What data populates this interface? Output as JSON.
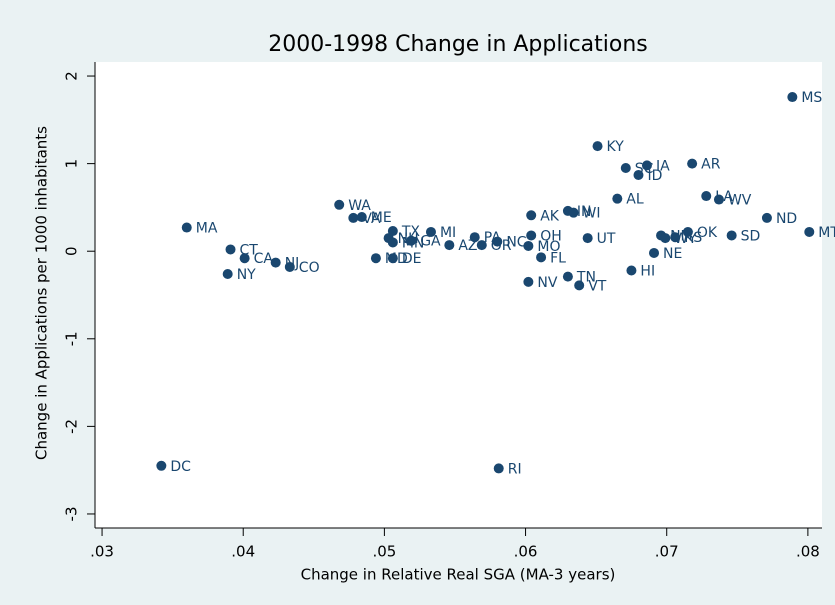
{
  "chart_data": {
    "type": "scatter",
    "title": "2000-1998 Change in Applications",
    "x_label": "Change in Relative Real SGA (MA-3 years)",
    "y_label": "Change in Applications per 1000 inhabitants",
    "color": "#1a476f",
    "labels": [
      "MA",
      "CT",
      "NY",
      "CA",
      "NJ",
      "CO",
      "DC",
      "WA",
      "VA",
      "ME",
      "TX",
      "NH",
      "MN",
      "GA",
      "MI",
      "AZ",
      "PA",
      "OR",
      "NC",
      "MD",
      "DE",
      "OH",
      "AK",
      "MO",
      "FL",
      "NV",
      "IN",
      "WI",
      "UT",
      "TN",
      "VT",
      "KY",
      "SC",
      "IA",
      "ID",
      "AR",
      "AL",
      "LA",
      "WV",
      "ND",
      "MT",
      "SD",
      "OK",
      "NM",
      "WY",
      "KS",
      "NE",
      "HI",
      "MS",
      "RI"
    ],
    "x": [
      0.036,
      0.0391,
      0.0389,
      0.0401,
      0.0423,
      0.0433,
      0.0342,
      0.0468,
      0.0478,
      0.0484,
      0.0506,
      0.0503,
      0.0506,
      0.0519,
      0.0533,
      0.0546,
      0.0564,
      0.0569,
      0.058,
      0.0494,
      0.0506,
      0.0604,
      0.0604,
      0.0602,
      0.0611,
      0.0602,
      0.063,
      0.0634,
      0.0644,
      0.063,
      0.0638,
      0.0651,
      0.0671,
      0.0686,
      0.068,
      0.0718,
      0.0665,
      0.0728,
      0.0737,
      0.0771,
      0.0801,
      0.0746,
      0.0715,
      0.0696,
      0.0699,
      0.0706,
      0.0691,
      0.0675,
      0.0789,
      0.0581
    ],
    "values": [
      0.27,
      0.02,
      -0.26,
      -0.08,
      -0.13,
      -0.18,
      -2.45,
      0.53,
      0.38,
      0.39,
      0.23,
      0.15,
      0.1,
      0.12,
      0.22,
      0.07,
      0.16,
      0.07,
      0.11,
      -0.08,
      -0.08,
      0.18,
      0.41,
      0.06,
      -0.07,
      -0.35,
      0.46,
      0.44,
      0.15,
      -0.29,
      -0.39,
      1.2,
      0.95,
      0.98,
      0.87,
      1.0,
      0.6,
      0.63,
      0.59,
      0.38,
      0.22,
      0.18,
      0.22,
      0.18,
      0.15,
      0.16,
      -0.02,
      -0.22,
      1.76,
      -2.48
    ],
    "xlim": [
      0.0295,
      0.081
    ],
    "ylim": [
      -3.126,
      2.126
    ],
    "xticks": [
      {
        "value": 0.03,
        "label": ".03"
      },
      {
        "value": 0.04,
        "label": ".04"
      },
      {
        "value": 0.05,
        "label": ".05"
      },
      {
        "value": 0.06,
        "label": ".06"
      },
      {
        "value": 0.07,
        "label": ".07"
      },
      {
        "value": 0.08,
        "label": ".08"
      }
    ],
    "yticks": [
      -3,
      -2,
      -1,
      0,
      1,
      2
    ]
  }
}
